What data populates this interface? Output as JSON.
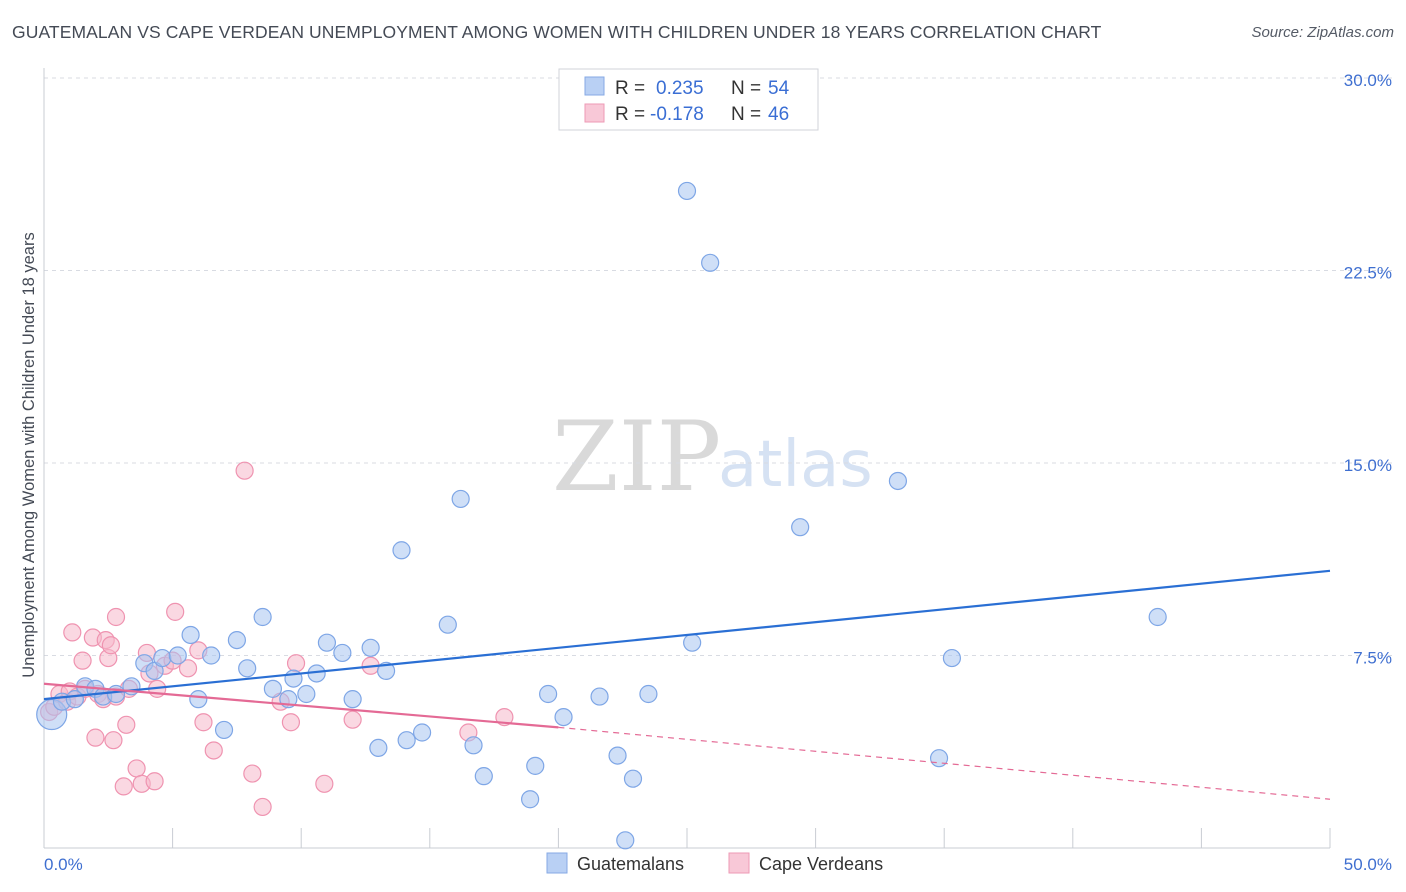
{
  "title": "GUATEMALAN VS CAPE VERDEAN UNEMPLOYMENT AMONG WOMEN WITH CHILDREN UNDER 18 YEARS CORRELATION CHART",
  "source": "Source: ZipAtlas.com",
  "watermark": {
    "zip": "ZIP",
    "atlas": "atlas"
  },
  "legend_box": {
    "r_label": "R =",
    "n_label": "N =",
    "rows": [
      {
        "r": "0.235",
        "n": "54"
      },
      {
        "r": "-0.178",
        "n": "46"
      }
    ]
  },
  "colors": {
    "guatemalans_fill": "#a8c4f0",
    "guatemalans_stroke": "#7ea6e6",
    "guatemalans_line": "#2a6fd4",
    "cape_fill": "#f6b8cb",
    "cape_stroke": "#ef93b0",
    "cape_line": "#e46a95",
    "tick_text": "#3f6fd0",
    "grid": "#d8dbe2"
  },
  "chart_data": {
    "type": "scatter",
    "title": "GUATEMALAN VS CAPE VERDEAN UNEMPLOYMENT AMONG WOMEN WITH CHILDREN UNDER 18 YEARS CORRELATION CHART",
    "xlabel": "",
    "ylabel": "Unemployment Among Women with Children Under 18 years",
    "xlim": [
      0,
      50
    ],
    "ylim": [
      0,
      30
    ],
    "x_tick_labels": [
      "0.0%",
      "50.0%"
    ],
    "y_ticks": [
      7.5,
      15.0,
      22.5,
      30.0
    ],
    "y_tick_labels": [
      "7.5%",
      "15.0%",
      "22.5%",
      "30.0%"
    ],
    "grid": "horizontal dashed",
    "legend": "top-center and bottom",
    "series": [
      {
        "name": "Guatemalans",
        "r": 0.235,
        "n": 54,
        "trend": {
          "x": [
            0,
            50
          ],
          "y": [
            5.8,
            10.8
          ]
        },
        "points": [
          [
            0.3,
            5.2
          ],
          [
            0.7,
            5.7
          ],
          [
            1.2,
            5.8
          ],
          [
            1.6,
            6.3
          ],
          [
            2.0,
            6.2
          ],
          [
            2.3,
            5.9
          ],
          [
            2.8,
            6.0
          ],
          [
            3.4,
            6.3
          ],
          [
            3.9,
            7.2
          ],
          [
            4.3,
            6.9
          ],
          [
            4.6,
            7.4
          ],
          [
            5.2,
            7.5
          ],
          [
            5.7,
            8.3
          ],
          [
            6.0,
            5.8
          ],
          [
            6.5,
            7.5
          ],
          [
            7.0,
            4.6
          ],
          [
            7.5,
            8.1
          ],
          [
            7.9,
            7.0
          ],
          [
            8.5,
            9.0
          ],
          [
            8.9,
            6.2
          ],
          [
            9.5,
            5.8
          ],
          [
            9.7,
            6.6
          ],
          [
            10.2,
            6.0
          ],
          [
            10.6,
            6.8
          ],
          [
            11.0,
            8.0
          ],
          [
            11.6,
            7.6
          ],
          [
            12.0,
            5.8
          ],
          [
            12.7,
            7.8
          ],
          [
            13.0,
            3.9
          ],
          [
            13.3,
            6.9
          ],
          [
            13.9,
            11.6
          ],
          [
            14.1,
            4.2
          ],
          [
            14.7,
            4.5
          ],
          [
            15.7,
            8.7
          ],
          [
            16.2,
            13.6
          ],
          [
            16.7,
            4.0
          ],
          [
            17.1,
            2.8
          ],
          [
            18.9,
            1.9
          ],
          [
            19.1,
            3.2
          ],
          [
            19.6,
            6.0
          ],
          [
            20.2,
            5.1
          ],
          [
            21.6,
            5.9
          ],
          [
            22.3,
            3.6
          ],
          [
            22.6,
            0.3
          ],
          [
            22.9,
            2.7
          ],
          [
            23.5,
            6.0
          ],
          [
            25.0,
            25.6
          ],
          [
            25.2,
            8.0
          ],
          [
            25.9,
            22.8
          ],
          [
            29.4,
            12.5
          ],
          [
            33.2,
            14.3
          ],
          [
            34.8,
            3.5
          ],
          [
            35.3,
            7.4
          ],
          [
            43.3,
            9.0
          ]
        ]
      },
      {
        "name": "Cape Verdeans",
        "r": -0.178,
        "n": 46,
        "trend": {
          "x": [
            0,
            20
          ],
          "y": [
            6.4,
            4.7
          ],
          "dashed_extension": {
            "x": [
              20,
              50
            ],
            "y": [
              4.7,
              1.9
            ]
          }
        },
        "points": [
          [
            0.2,
            5.3
          ],
          [
            0.4,
            5.5
          ],
          [
            0.6,
            6.0
          ],
          [
            0.9,
            5.7
          ],
          [
            1.0,
            6.1
          ],
          [
            1.1,
            8.4
          ],
          [
            1.3,
            5.9
          ],
          [
            1.5,
            7.3
          ],
          [
            1.6,
            6.2
          ],
          [
            1.9,
            8.2
          ],
          [
            2.0,
            4.3
          ],
          [
            2.1,
            6.0
          ],
          [
            2.3,
            5.8
          ],
          [
            2.4,
            8.1
          ],
          [
            2.5,
            7.4
          ],
          [
            2.6,
            7.9
          ],
          [
            2.7,
            4.2
          ],
          [
            2.8,
            5.9
          ],
          [
            2.8,
            9.0
          ],
          [
            3.1,
            2.4
          ],
          [
            3.2,
            4.8
          ],
          [
            3.3,
            6.2
          ],
          [
            3.6,
            3.1
          ],
          [
            3.8,
            2.5
          ],
          [
            4.0,
            7.6
          ],
          [
            4.1,
            6.8
          ],
          [
            4.3,
            2.6
          ],
          [
            4.4,
            6.2
          ],
          [
            4.7,
            7.1
          ],
          [
            5.0,
            7.3
          ],
          [
            5.1,
            9.2
          ],
          [
            5.6,
            7.0
          ],
          [
            6.0,
            7.7
          ],
          [
            6.2,
            4.9
          ],
          [
            6.6,
            3.8
          ],
          [
            7.8,
            14.7
          ],
          [
            8.1,
            2.9
          ],
          [
            8.5,
            1.6
          ],
          [
            9.2,
            5.7
          ],
          [
            9.6,
            4.9
          ],
          [
            9.8,
            7.2
          ],
          [
            10.9,
            2.5
          ],
          [
            12.0,
            5.0
          ],
          [
            12.7,
            7.1
          ],
          [
            16.5,
            4.5
          ],
          [
            17.9,
            5.1
          ]
        ]
      }
    ]
  },
  "bottom_legend": [
    {
      "label": "Guatemalans"
    },
    {
      "label": "Cape Verdeans"
    }
  ]
}
